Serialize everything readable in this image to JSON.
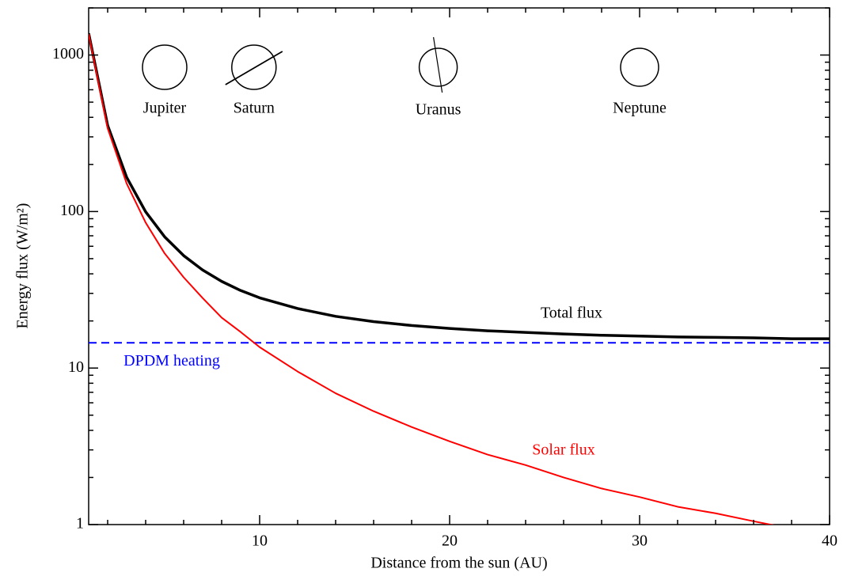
{
  "chart_data": {
    "type": "line",
    "xlabel": "Distance from the sun (AU)",
    "ylabel": "Energy flux (W/m²)",
    "xlim": [
      1,
      40
    ],
    "ylim": [
      1,
      2000
    ],
    "log_y": true,
    "xticks": [
      10,
      20,
      30,
      40
    ],
    "yticks": [
      1,
      10,
      100,
      1000
    ],
    "x": [
      1,
      2,
      3,
      4,
      5,
      6,
      7,
      8,
      9,
      10,
      12,
      14,
      16,
      18,
      20,
      22,
      24,
      26,
      28,
      30,
      32,
      34,
      36,
      38,
      40
    ],
    "series": [
      {
        "name": "Total flux",
        "color": "#000000",
        "width": 3.5,
        "values": [
          1375.5,
          354.5,
          165.5,
          99.6,
          68.9,
          52.3,
          42.3,
          35.8,
          31.3,
          28.1,
          24.0,
          21.4,
          19.8,
          18.7,
          17.9,
          17.3,
          16.9,
          16.5,
          16.2,
          16.0,
          15.8,
          15.7,
          15.6,
          15.4,
          15.4
        ]
      },
      {
        "name": "Solar flux",
        "color": "#ff0000",
        "width": 2,
        "values": [
          1361,
          340,
          151,
          85,
          54,
          38,
          28,
          21,
          17,
          13.6,
          9.5,
          6.9,
          5.3,
          4.2,
          3.4,
          2.8,
          2.4,
          2.0,
          1.7,
          1.5,
          1.3,
          1.18,
          1.05,
          0.94,
          0.85
        ]
      }
    ],
    "hline": {
      "name": "DPDM heating",
      "color": "#0000ff",
      "value": 14.5,
      "dashed": true
    },
    "planets": [
      {
        "label": "Jupiter",
        "x": 5.0,
        "marker": "plain"
      },
      {
        "label": "Saturn",
        "x": 9.7,
        "marker": "ring"
      },
      {
        "label": "Uranus",
        "x": 19.4,
        "marker": "axis"
      },
      {
        "label": "Neptune",
        "x": 30.0,
        "marker": "plain"
      }
    ]
  }
}
